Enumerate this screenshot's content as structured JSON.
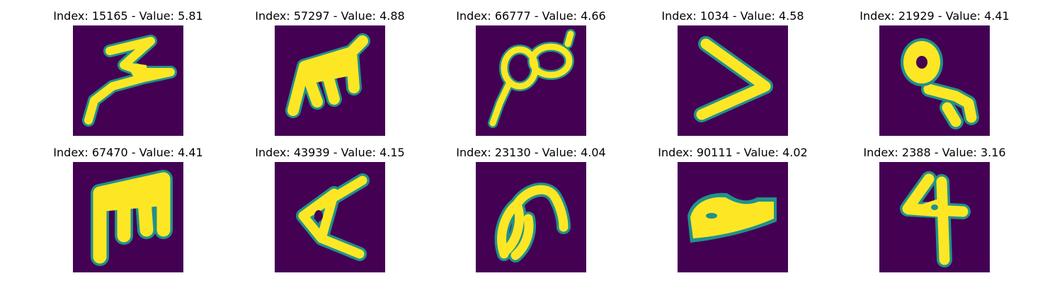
{
  "figure": {
    "background_color": "#440154",
    "stroke_color": "#fde725",
    "edge_color": "#21918c",
    "panels": [
      {
        "title": "Index: 15165 - Value: 5.81",
        "glyph": "z-shape-icon"
      },
      {
        "title": "Index: 57297 - Value: 4.88",
        "glyph": "m-shape-icon"
      },
      {
        "title": "Index: 66777 - Value: 4.66",
        "glyph": "loop-shape-icon"
      },
      {
        "title": "Index: 1034 - Value: 4.58",
        "glyph": "chevron-shape-icon"
      },
      {
        "title": "Index: 21929 - Value: 4.41",
        "glyph": "ring-hook-shape-icon"
      },
      {
        "title": "Index: 67470 - Value: 4.41",
        "glyph": "m-shape-icon"
      },
      {
        "title": "Index: 43939 - Value: 4.15",
        "glyph": "triangle-shape-icon"
      },
      {
        "title": "Index: 23130 - Value: 4.04",
        "glyph": "curl-shape-icon"
      },
      {
        "title": "Index: 90111 - Value: 4.02",
        "glyph": "wedge-shape-icon"
      },
      {
        "title": "Index: 2388 - Value: 3.16",
        "glyph": "four-shape-icon"
      }
    ]
  }
}
